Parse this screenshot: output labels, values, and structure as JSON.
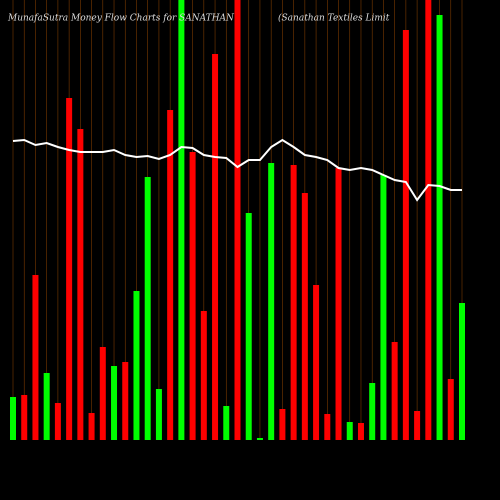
{
  "chart_data": {
    "type": "bar",
    "title": "MunafaSutra  Money Flow  Charts for SANATHAN",
    "subtitle": "(Sanathan  Textiles Limit",
    "ylim": [
      0,
      440
    ],
    "series": [
      {
        "name": "Money Flow",
        "values": [
          43,
          45,
          165,
          67,
          37,
          342,
          311,
          27,
          93,
          74,
          78,
          149,
          263,
          51,
          330,
          440,
          288,
          129,
          386,
          34,
          440,
          227,
          2,
          277,
          31,
          275,
          247,
          155,
          26,
          272,
          18,
          17,
          57,
          265,
          98,
          410,
          29,
          440,
          425,
          61,
          137
        ],
        "colors": [
          "#00ff00",
          "#ff0000",
          "#ff0000",
          "#00ff00",
          "#ff0000",
          "#ff0000",
          "#ff0000",
          "#ff0000",
          "#ff0000",
          "#00ff00",
          "#ff0000",
          "#00ff00",
          "#00ff00",
          "#00ff00",
          "#ff0000",
          "#00ff00",
          "#ff0000",
          "#ff0000",
          "#ff0000",
          "#00ff00",
          "#ff0000",
          "#00ff00",
          "#00ff00",
          "#00ff00",
          "#ff0000",
          "#ff0000",
          "#ff0000",
          "#ff0000",
          "#ff0000",
          "#ff0000",
          "#00ff00",
          "#ff0000",
          "#00ff00",
          "#00ff00",
          "#ff0000",
          "#ff0000",
          "#ff0000",
          "#ff0000",
          "#00ff00",
          "#ff0000",
          "#00ff00"
        ]
      },
      {
        "name": "Price",
        "type": "line",
        "color": "#ffffff",
        "values": [
          299,
          300,
          295,
          297,
          293,
          290,
          288,
          288,
          288,
          290,
          285,
          283,
          284,
          281,
          285,
          293,
          292,
          285,
          283,
          282,
          273,
          280,
          280,
          293,
          300,
          293,
          285,
          283,
          280,
          272,
          270,
          272,
          270,
          265,
          260,
          258,
          240,
          255,
          254,
          250,
          250
        ]
      }
    ]
  }
}
